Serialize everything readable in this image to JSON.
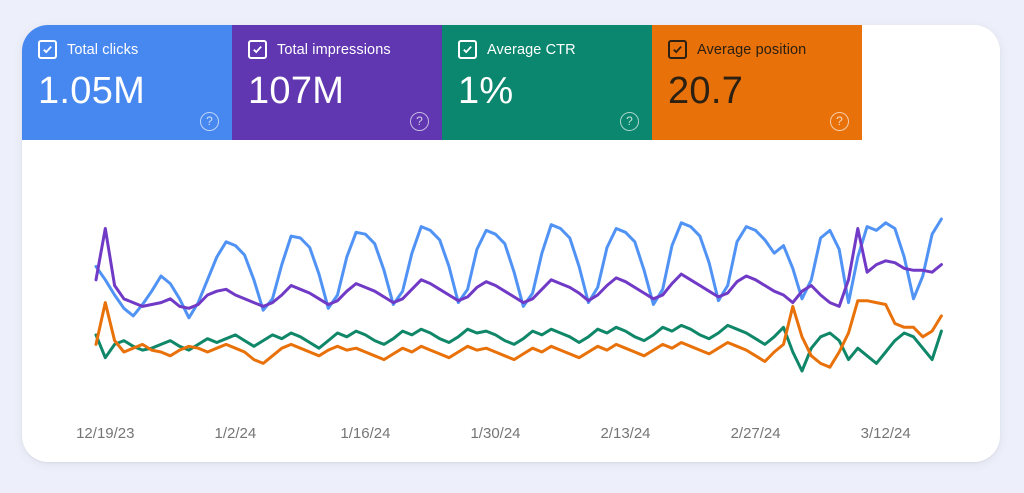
{
  "page": {
    "background": "#edf0fa",
    "surface_background": "#ffffff"
  },
  "icons": {
    "help_glyph": "?"
  },
  "metrics": [
    {
      "id": "total-clicks",
      "label": "Total clicks",
      "value": "1.05M",
      "checked": true,
      "card_color": "#4787f0",
      "text_color": "#ffffff"
    },
    {
      "id": "total-impressions",
      "label": "Total impressions",
      "value": "107M",
      "checked": true,
      "card_color": "#6036b1",
      "text_color": "#ffffff"
    },
    {
      "id": "average-ctr",
      "label": "Average CTR",
      "value": "1%",
      "checked": true,
      "card_color": "#0a876e",
      "text_color": "#ffffff"
    },
    {
      "id": "average-position",
      "label": "Average position",
      "value": "20.7",
      "checked": true,
      "card_color": "#e8710a",
      "text_color": "#2b2012"
    }
  ],
  "chart_data": {
    "type": "line",
    "title": "",
    "xlabel": "",
    "ylabel": "",
    "grid": false,
    "legend_position": "none (legend is the metric cards above)",
    "y_axis": "none shown; each series independently scaled; values below are normalized 0-100 of plot height",
    "x_tick_labels": [
      "12/19/23",
      "1/2/24",
      "1/16/24",
      "1/30/24",
      "2/13/24",
      "2/27/24",
      "3/12/24"
    ],
    "x_tick_days": [
      1,
      15,
      29,
      43,
      57,
      71,
      85
    ],
    "num_points": 92,
    "tick_label_color": "#757575",
    "series": [
      {
        "name": "Total clicks",
        "color": "#5093f4",
        "values": [
          65,
          58,
          50,
          43,
          39,
          45,
          52,
          60,
          56,
          48,
          38,
          46,
          58,
          70,
          78,
          76,
          71,
          58,
          42,
          48,
          66,
          81,
          80,
          75,
          61,
          43,
          50,
          70,
          83,
          82,
          77,
          63,
          45,
          52,
          72,
          86,
          84,
          79,
          65,
          46,
          53,
          74,
          84,
          82,
          77,
          62,
          44,
          51,
          72,
          87,
          85,
          80,
          65,
          46,
          54,
          75,
          85,
          83,
          78,
          63,
          45,
          53,
          76,
          88,
          86,
          81,
          67,
          47,
          55,
          78,
          86,
          84,
          79,
          72,
          76,
          64,
          48,
          58,
          80,
          84,
          74,
          46,
          70,
          86,
          84,
          88,
          85,
          70,
          48,
          60,
          82,
          90
        ]
      },
      {
        "name": "Total impressions",
        "color": "#703ac6",
        "values": [
          58,
          85,
          55,
          48,
          46,
          44,
          45,
          46,
          48,
          44,
          43,
          45,
          50,
          52,
          53,
          50,
          48,
          46,
          44,
          46,
          50,
          55,
          53,
          51,
          48,
          45,
          47,
          52,
          56,
          54,
          52,
          49,
          46,
          48,
          53,
          58,
          56,
          53,
          50,
          47,
          49,
          54,
          57,
          55,
          52,
          49,
          46,
          48,
          53,
          58,
          56,
          54,
          51,
          47,
          50,
          55,
          59,
          57,
          54,
          51,
          48,
          50,
          56,
          61,
          58,
          55,
          52,
          49,
          51,
          57,
          60,
          58,
          55,
          52,
          50,
          46,
          52,
          55,
          50,
          46,
          44,
          58,
          85,
          62,
          66,
          68,
          67,
          64,
          63,
          63,
          62,
          66
        ]
      },
      {
        "name": "Average CTR",
        "color": "#0f8768",
        "values": [
          29,
          17,
          24,
          26,
          23,
          21,
          22,
          24,
          26,
          23,
          21,
          24,
          27,
          25,
          27,
          29,
          26,
          23,
          26,
          29,
          27,
          30,
          28,
          25,
          22,
          26,
          30,
          28,
          31,
          29,
          26,
          24,
          27,
          31,
          29,
          32,
          30,
          27,
          25,
          28,
          32,
          30,
          31,
          29,
          26,
          24,
          27,
          31,
          29,
          32,
          30,
          28,
          25,
          28,
          32,
          30,
          33,
          31,
          28,
          26,
          29,
          33,
          31,
          34,
          32,
          29,
          27,
          30,
          34,
          32,
          30,
          27,
          24,
          28,
          33,
          20,
          10,
          22,
          28,
          30,
          26,
          16,
          22,
          18,
          14,
          20,
          26,
          30,
          28,
          22,
          16,
          31
        ]
      },
      {
        "name": "Average position",
        "color": "#e8710a",
        "values": [
          24,
          46,
          26,
          20,
          22,
          24,
          21,
          20,
          18,
          21,
          23,
          22,
          20,
          22,
          24,
          22,
          20,
          16,
          14,
          18,
          22,
          24,
          22,
          20,
          18,
          21,
          23,
          21,
          22,
          20,
          18,
          16,
          19,
          22,
          20,
          23,
          21,
          19,
          17,
          20,
          23,
          21,
          22,
          20,
          18,
          16,
          19,
          22,
          20,
          23,
          21,
          19,
          17,
          20,
          23,
          21,
          24,
          22,
          20,
          18,
          21,
          24,
          22,
          25,
          23,
          21,
          19,
          22,
          25,
          23,
          21,
          18,
          15,
          20,
          24,
          44,
          28,
          18,
          14,
          12,
          20,
          30,
          47,
          47,
          46,
          45,
          35,
          33,
          33,
          28,
          31,
          39
        ]
      }
    ]
  }
}
